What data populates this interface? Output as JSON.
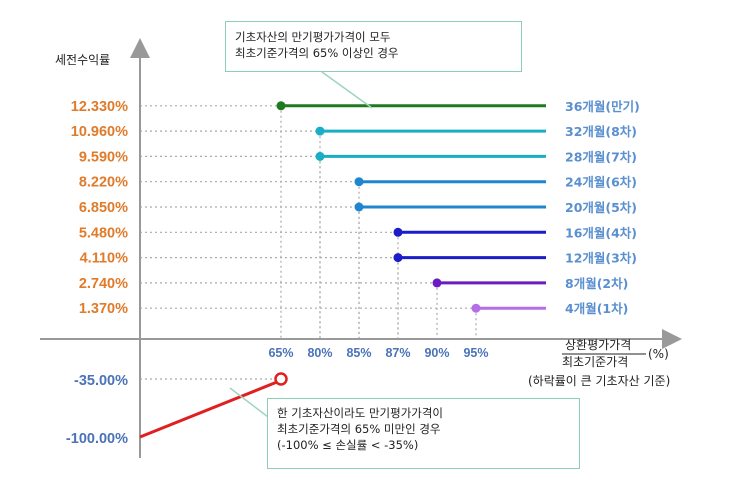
{
  "chart_data": {
    "type": "line",
    "ylabel": "세전수익률",
    "xlabel": {
      "numerator": "상환평가가격",
      "denominator": "최초기준가격",
      "unit": "(%)",
      "note": "(하락률이 큰 기초자산 기준)"
    },
    "y_tick_labels": [
      "12.330%",
      "10.960%",
      "9.590%",
      "8.220%",
      "6.850%",
      "5.480%",
      "4.110%",
      "2.740%",
      "1.370%",
      "-35.00%",
      "-100.00%"
    ],
    "x_tick_labels": [
      "65%",
      "80%",
      "85%",
      "87%",
      "90%",
      "95%"
    ],
    "series": [
      {
        "name": "36개월(만기)",
        "barrier": 65,
        "return": 12.33,
        "color": "#1e7a1e"
      },
      {
        "name": "32개월(8차)",
        "barrier": 80,
        "return": 10.96,
        "color": "#1aaec4"
      },
      {
        "name": "28개월(7차)",
        "barrier": 80,
        "return": 9.59,
        "color": "#1aaec4"
      },
      {
        "name": "24개월(6차)",
        "barrier": 85,
        "return": 8.22,
        "color": "#1e86cc"
      },
      {
        "name": "20개월(5차)",
        "barrier": 85,
        "return": 6.85,
        "color": "#1e86cc"
      },
      {
        "name": "16개월(4차)",
        "barrier": 87,
        "return": 5.48,
        "color": "#1c1cc8"
      },
      {
        "name": "12개월(3차)",
        "barrier": 87,
        "return": 4.11,
        "color": "#1c1cc8"
      },
      {
        "name": "8개월(2차)",
        "barrier": 90,
        "return": 2.74,
        "color": "#6a1cc0"
      },
      {
        "name": "4개월(1차)",
        "barrier": 95,
        "return": 1.37,
        "color": "#b56ee8"
      }
    ],
    "loss_segment": {
      "from_return": -100.0,
      "to_price": 65,
      "to_return": -35.0,
      "color": "#e02020"
    },
    "annotations": {
      "top": [
        "기초자산의 만기평가가격이 모두",
        "최초기준가격의 65% 이상인 경우"
      ],
      "bottom": [
        "한 기초자산이라도 만기평가가격이",
        "최초기준가격의 65% 미만인 경우",
        "(-100% ≤ 손실률 < -35%)"
      ]
    }
  }
}
